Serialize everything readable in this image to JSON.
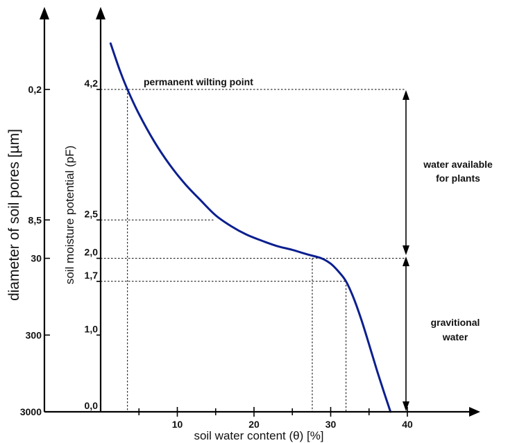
{
  "chart_data": {
    "type": "line",
    "title": "",
    "xlabel": "soil water content (θ) [%]",
    "ylabel": "soil moisture potential (pF)",
    "y2label": "diameter of soil pores [µm]",
    "xlim": [
      0,
      40
    ],
    "ylim": [
      0,
      5
    ],
    "x_ticks": [
      10,
      20,
      30,
      40
    ],
    "x_tick_labels": [
      "10",
      "20",
      "30",
      "40"
    ],
    "x_minor_ticks": [
      5,
      15,
      25,
      35
    ],
    "y_ticks": [
      {
        "pf": 0.0,
        "label": "0,0",
        "pore": "3000"
      },
      {
        "pf": 1.0,
        "label": "1,0",
        "pore": "300"
      },
      {
        "pf": 1.7,
        "label": "1,7",
        "pore": ""
      },
      {
        "pf": 2.0,
        "label": "2,0",
        "pore": "30"
      },
      {
        "pf": 2.5,
        "label": "2,5",
        "pore": "8,5"
      },
      {
        "pf": 4.2,
        "label": "4,2",
        "pore": "0,2"
      }
    ],
    "series": [
      {
        "color": "#0b1f8f",
        "x": [
          1.3,
          2.5,
          3.5,
          5,
          7,
          9,
          11,
          13,
          15,
          17,
          19,
          21,
          23,
          25,
          27,
          28.8,
          30,
          31,
          32,
          33,
          34,
          35,
          36,
          37,
          37.8
        ],
        "y": [
          4.8,
          4.45,
          4.2,
          3.88,
          3.52,
          3.22,
          2.97,
          2.76,
          2.56,
          2.42,
          2.31,
          2.23,
          2.16,
          2.11,
          2.05,
          2.0,
          1.93,
          1.83,
          1.7,
          1.48,
          1.2,
          0.88,
          0.55,
          0.24,
          0.0
        ]
      }
    ],
    "reference_lines": [
      {
        "pf": 4.2,
        "x": 3.5
      },
      {
        "pf": 2.5,
        "x": 14.7
      },
      {
        "pf": 2.0,
        "x": 27.6
      },
      {
        "pf": 1.7,
        "x": 32.0
      }
    ],
    "annotations": {
      "wilting_point": "permanent wilting point",
      "available_line1": "water available",
      "available_line2": "for plants",
      "gravitational_line1": "gravitional",
      "gravitational_line2": "water"
    },
    "grid": false,
    "legend": "none"
  }
}
